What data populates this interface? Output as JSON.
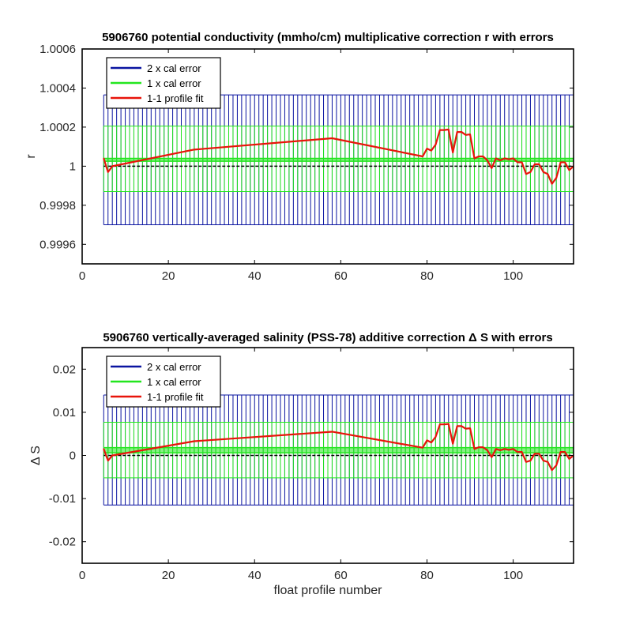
{
  "chart_data": [
    {
      "type": "line",
      "title": "5906760 potential conductivity (mmho/cm) multiplicative correction r with errors",
      "xlabel": "",
      "ylabel": "r",
      "xlim": [
        0,
        114
      ],
      "ylim": [
        0.9995,
        1.0006
      ],
      "xticks": [
        0,
        20,
        40,
        60,
        80,
        100
      ],
      "xtick_labels": [
        "0",
        "20",
        "40",
        "60",
        "80",
        "100"
      ],
      "yticks": [
        0.9996,
        0.9998,
        1.0,
        1.0002,
        1.0004,
        1.0006
      ],
      "ytick_labels": [
        "0.9996",
        "0.9998",
        "1",
        "1.0002",
        "1.0004",
        "1.0006"
      ],
      "reference_line": 1.0,
      "grid": false,
      "legend_position": "top-left",
      "legend": [
        "2 x cal error",
        "1 x cal error",
        "1-1 profile fit"
      ],
      "error_band_2x": [
        0.9997,
        1.000365
      ],
      "error_band_1x": [
        0.99987,
        1.000205
      ],
      "fit_band": [
        1.000025,
        1.00004
      ],
      "series": [
        {
          "name": "1-1 profile fit",
          "color": "#e8140a",
          "x": [
            5,
            6,
            7,
            26,
            58,
            79,
            80,
            81,
            82,
            83,
            84,
            85,
            86,
            87,
            88,
            89,
            90,
            91,
            92,
            93,
            94,
            95,
            96,
            97,
            98,
            99,
            100,
            101,
            102,
            103,
            104,
            105,
            106,
            107,
            108,
            109,
            110,
            111,
            112,
            113,
            114
          ],
          "y": [
            1.00004,
            0.99997,
            1.0,
            1.000085,
            1.000143,
            1.00005,
            1.00009,
            1.00008,
            1.00011,
            1.000185,
            1.000185,
            1.000188,
            1.00007,
            1.000175,
            1.000175,
            1.00016,
            1.000163,
            1.00004,
            1.00005,
            1.00005,
            1.00003,
            0.99999,
            1.00004,
            1.00003,
            1.00004,
            1.000035,
            1.00004,
            1.00002,
            1.00002,
            0.99996,
            0.99997,
            1.00001,
            1.00001,
            0.99997,
            0.99996,
            0.99991,
            0.99994,
            1.00002,
            1.00002,
            0.99998,
            1.0
          ]
        }
      ]
    },
    {
      "type": "line",
      "title": "5906760 vertically-averaged salinity (PSS-78) additive correction Δ S with errors",
      "xlabel": "float profile number",
      "ylabel": "Δ S",
      "xlim": [
        0,
        114
      ],
      "ylim": [
        -0.025,
        0.025
      ],
      "xticks": [
        0,
        20,
        40,
        60,
        80,
        100
      ],
      "xtick_labels": [
        "0",
        "20",
        "40",
        "60",
        "80",
        "100"
      ],
      "yticks": [
        -0.02,
        -0.01,
        0,
        0.01,
        0.02
      ],
      "ytick_labels": [
        "-0.02",
        "-0.01",
        "0",
        "0.01",
        "0.02"
      ],
      "reference_line": 0,
      "grid": false,
      "legend_position": "top-left",
      "legend": [
        "2 x cal error",
        "1 x cal error",
        "1-1 profile fit"
      ],
      "error_band_2x": [
        -0.0115,
        0.014
      ],
      "error_band_1x": [
        -0.0052,
        0.0077
      ],
      "fit_band": [
        0.0006,
        0.0018
      ],
      "series": [
        {
          "name": "1-1 profile fit",
          "color": "#e8140a",
          "x": [
            5,
            6,
            7,
            26,
            58,
            79,
            80,
            81,
            82,
            83,
            84,
            85,
            86,
            87,
            88,
            89,
            90,
            91,
            92,
            93,
            94,
            95,
            96,
            97,
            98,
            99,
            100,
            101,
            102,
            103,
            104,
            105,
            106,
            107,
            108,
            109,
            110,
            111,
            112,
            113,
            114
          ],
          "y": [
            0.0015,
            -0.0012,
            0.0,
            0.0033,
            0.0055,
            0.0018,
            0.0035,
            0.003,
            0.0043,
            0.0072,
            0.0072,
            0.0073,
            0.0027,
            0.0068,
            0.0068,
            0.0062,
            0.0063,
            0.0015,
            0.0019,
            0.0019,
            0.0012,
            -0.0004,
            0.0015,
            0.0012,
            0.0015,
            0.0013,
            0.0015,
            0.0008,
            0.0008,
            -0.0015,
            -0.0012,
            0.0004,
            0.0004,
            -0.0012,
            -0.0015,
            -0.0034,
            -0.0023,
            0.0008,
            0.0008,
            -0.0008,
            0.0
          ]
        }
      ]
    }
  ],
  "colors": {
    "band_2x": "#0a14a0",
    "band_1x": "#22e61e",
    "fit": "#e8140a",
    "reference": "#000000"
  }
}
